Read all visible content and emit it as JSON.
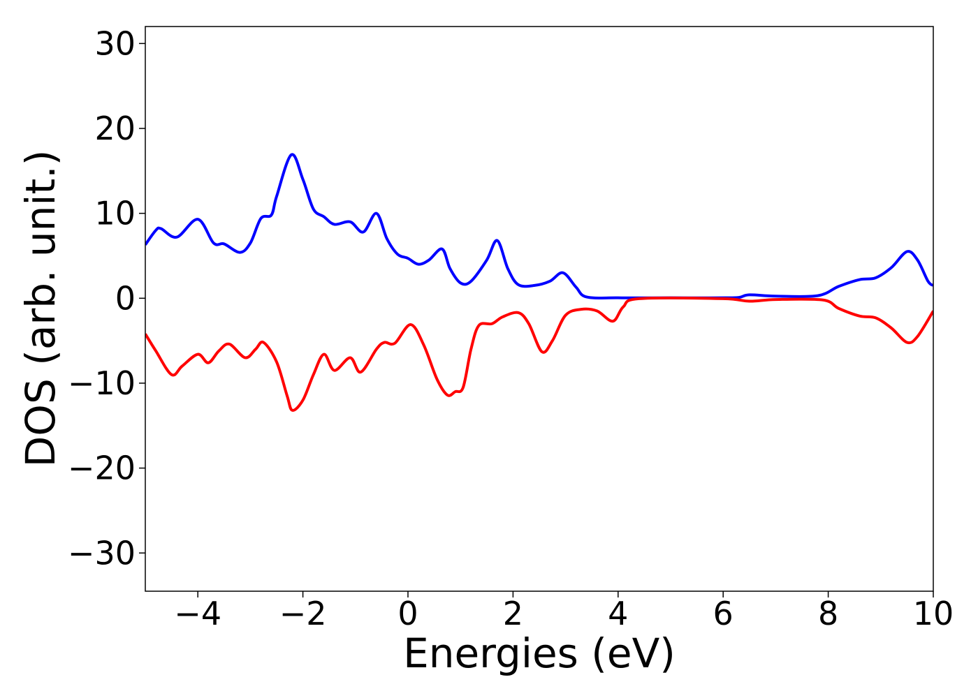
{
  "chart_data": {
    "type": "line",
    "xlabel": "Energies (eV)",
    "ylabel": "DOS (arb. unit.)",
    "xlim": [
      -5,
      10
    ],
    "ylim": [
      -34.5,
      32
    ],
    "xticks": [
      {
        "value": -4,
        "label": "−4"
      },
      {
        "value": -2,
        "label": "−2"
      },
      0,
      2,
      4,
      6,
      8,
      10
    ],
    "yticks": [
      {
        "value": -30,
        "label": "−30"
      },
      {
        "value": -20,
        "label": "−20"
      },
      {
        "value": -10,
        "label": "−10"
      },
      0,
      10,
      20,
      30
    ],
    "series": [
      {
        "color": "#0000ff",
        "x": [
          -5,
          -4.8,
          -4.7,
          -4.4,
          -4.0,
          -3.7,
          -3.5,
          -3.2,
          -3.0,
          -2.8,
          -2.6,
          -2.5,
          -2.22,
          -2.0,
          -1.8,
          -1.6,
          -1.4,
          -1.1,
          -0.85,
          -0.6,
          -0.4,
          -0.2,
          0,
          0.2,
          0.4,
          0.65,
          0.8,
          1.0,
          1.2,
          1.5,
          1.7,
          1.9,
          2.1,
          2.4,
          2.7,
          2.95,
          3.2,
          3.4,
          4,
          5,
          6,
          6.3,
          6.5,
          7,
          7.8,
          8.2,
          8.6,
          8.9,
          9.2,
          9.5,
          9.7,
          9.9,
          10
        ],
        "values": [
          6.3,
          8.0,
          8.2,
          7.2,
          9.3,
          6.5,
          6.4,
          5.4,
          6.5,
          9.4,
          9.8,
          12,
          16.9,
          14,
          10.5,
          9.6,
          8.7,
          9.0,
          7.8,
          10.0,
          7,
          5.2,
          4.7,
          4.0,
          4.5,
          5.8,
          3.5,
          1.8,
          2.0,
          4.5,
          6.8,
          3.5,
          1.6,
          1.5,
          2.0,
          3.0,
          1.3,
          0.15,
          0.05,
          0.05,
          0.05,
          0.1,
          0.4,
          0.25,
          0.3,
          1.4,
          2.2,
          2.4,
          3.6,
          5.5,
          4.5,
          2,
          1.5
        ]
      },
      {
        "color": "#ff0000",
        "x": [
          -5,
          -4.8,
          -4.5,
          -4.3,
          -4.0,
          -3.8,
          -3.6,
          -3.4,
          -3.1,
          -2.9,
          -2.75,
          -2.5,
          -2.3,
          -2.2,
          -2.0,
          -1.8,
          -1.6,
          -1.4,
          -1.1,
          -0.9,
          -0.6,
          -0.45,
          -0.25,
          0.05,
          0.3,
          0.55,
          0.75,
          0.9,
          1.05,
          1.2,
          1.35,
          1.6,
          1.8,
          2.1,
          2.3,
          2.55,
          2.75,
          3.0,
          3.3,
          3.6,
          3.9,
          4.1,
          4.4,
          6,
          6.5,
          7,
          7.9,
          8.2,
          8.6,
          8.9,
          9.2,
          9.5,
          9.7,
          10
        ],
        "values": [
          -4.2,
          -6.2,
          -9.0,
          -8,
          -6.6,
          -7.6,
          -6.2,
          -5.4,
          -7.0,
          -6,
          -5.2,
          -7.5,
          -11.5,
          -13.2,
          -12,
          -9,
          -6.6,
          -8.5,
          -7.0,
          -8.7,
          -6,
          -5.2,
          -5.3,
          -3.1,
          -5.5,
          -9.5,
          -11.4,
          -11,
          -10.5,
          -6,
          -3.2,
          -3,
          -2.2,
          -1.7,
          -3.0,
          -6.3,
          -5,
          -2,
          -1.3,
          -1.5,
          -2.7,
          -1,
          -0.05,
          -0.05,
          -0.35,
          -0.15,
          -0.2,
          -1.2,
          -2.1,
          -2.3,
          -3.5,
          -5.2,
          -4.5,
          -1.5
        ]
      }
    ]
  }
}
